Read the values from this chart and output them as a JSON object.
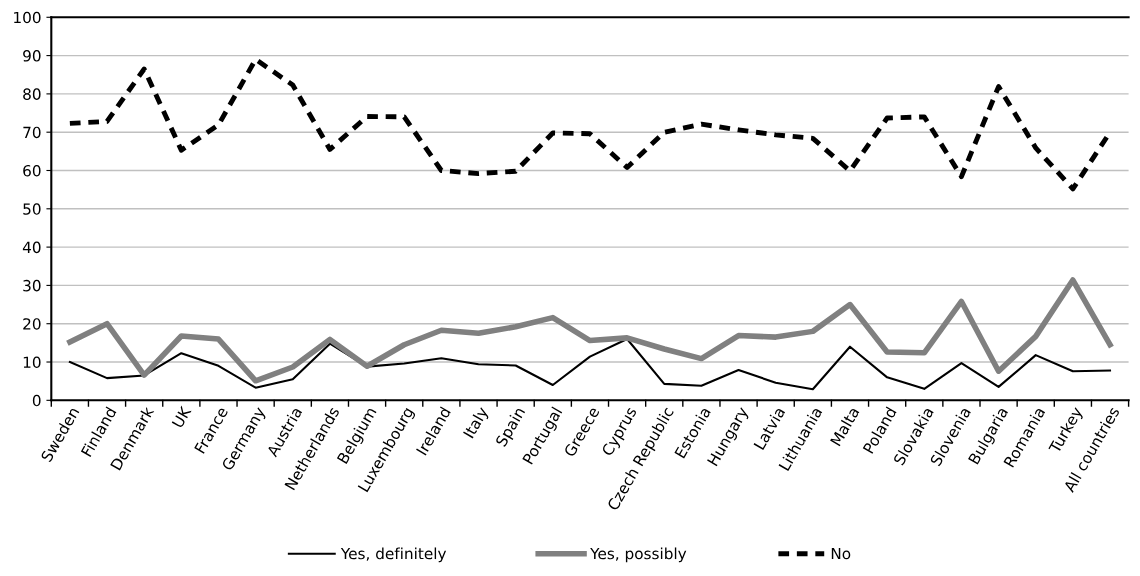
{
  "chart_data": {
    "type": "line",
    "categories": [
      "Sweden",
      "Finland",
      "Denmark",
      "UK",
      "France",
      "Germany",
      "Austria",
      "Netherlands",
      "Belgium",
      "Luxembourg",
      "Ireland",
      "Italy",
      "Spain",
      "Portugal",
      "Greece",
      "Cyprus",
      "Czech Republic",
      "Estonia",
      "Hungary",
      "Latvia",
      "Lithuania",
      "Malta",
      "Poland",
      "Slovakia",
      "Slovenia",
      "Bulgaria",
      "Romania",
      "Turkey",
      "All countries"
    ],
    "series": [
      {
        "name": "Yes, definitely",
        "color": "#000000",
        "line_style": "solid",
        "values": [
          10,
          5.8,
          6.5,
          12.3,
          9,
          3.3,
          5.5,
          14.8,
          8.8,
          9.6,
          11,
          9.4,
          9.1,
          4,
          11.4,
          16,
          4.3,
          3.8,
          7.9,
          4.6,
          2.9,
          14,
          6,
          3,
          9.7,
          3.5,
          11.8,
          7.6,
          7.8
        ]
      },
      {
        "name": "Yes, possibly",
        "color": "#808080",
        "line_style": "solid",
        "values": [
          15.2,
          20,
          6.6,
          16.8,
          16,
          5.1,
          8.7,
          15.9,
          8.9,
          14.5,
          18.3,
          17.5,
          19.2,
          21.6,
          15.6,
          16.3,
          13.4,
          10.9,
          16.9,
          16.5,
          18,
          25,
          12.6,
          12.4,
          25.8,
          7.6,
          16.7,
          31.4,
          14.5
        ]
      },
      {
        "name": "No",
        "color": "#000000",
        "line_style": "dashed",
        "values": [
          72.3,
          72.8,
          86.5,
          65.3,
          71.9,
          89,
          82.3,
          65.5,
          74.1,
          74,
          60,
          59.2,
          59.8,
          69.8,
          69.6,
          60.8,
          70,
          72.1,
          70.6,
          69.3,
          68.4,
          59.9,
          73.7,
          74,
          58.4,
          81.9,
          65.9,
          55.2,
          70
        ]
      }
    ],
    "ylim": [
      0,
      100
    ],
    "yticks": [
      0,
      10,
      20,
      30,
      40,
      50,
      60,
      70,
      80,
      90,
      100
    ],
    "grid": "y",
    "legend": "bottom",
    "marker": "none"
  }
}
